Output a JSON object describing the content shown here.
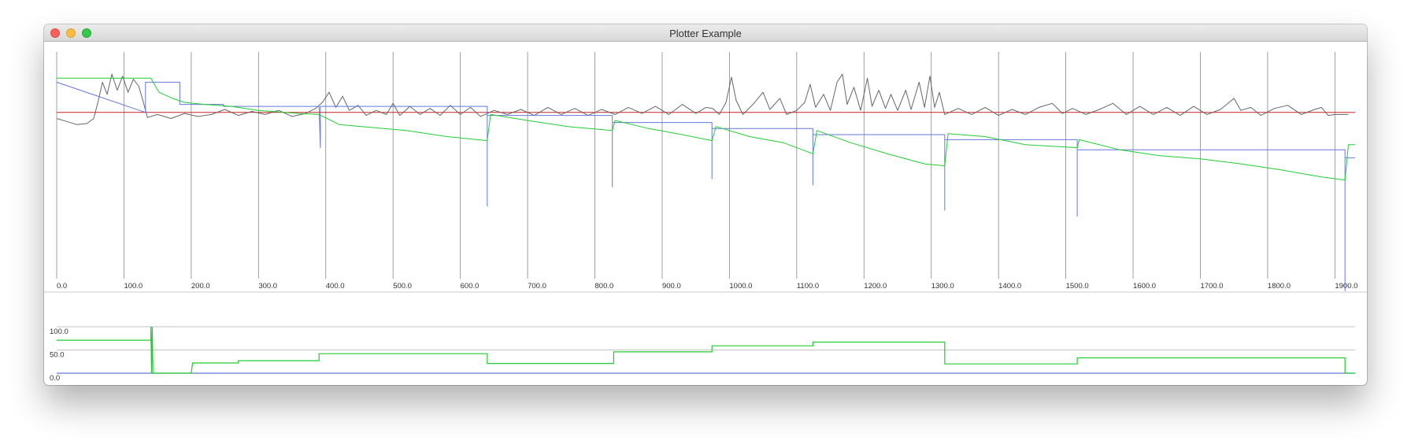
{
  "window": {
    "title": "Plotter Example"
  },
  "colors": {
    "noise": "#666666",
    "reference": "#cc2222",
    "blue": "#6677dd",
    "green": "#22cc33",
    "grid": "#888888"
  },
  "chart_data": [
    {
      "type": "line",
      "title": "",
      "xlim": [
        0,
        1930
      ],
      "ylim": [
        -1.65,
        0.6
      ],
      "x_ticks": [
        0,
        100,
        200,
        300,
        400,
        500,
        600,
        700,
        800,
        900,
        1000,
        1100,
        1200,
        1300,
        1400,
        1500,
        1600,
        1700,
        1800,
        1900
      ],
      "x_tick_labels": [
        "0.0",
        "100.0",
        "200.0",
        "300.0",
        "400.0",
        "500.0",
        "600.0",
        "700.0",
        "800.0",
        "900.0",
        "1000.0",
        "1100.0",
        "1200.0",
        "1300.0",
        "1400.0",
        "1500.0",
        "1600.0",
        "1700.0",
        "1800.0",
        "1900.0"
      ],
      "grid": "vertical",
      "series": [
        {
          "color": "#cc2222",
          "points": [
            [
              0,
              0
            ],
            [
              1930,
              0
            ]
          ]
        },
        {
          "color": "#666666",
          "points": [
            [
              0,
              -0.06
            ],
            [
              15,
              -0.09
            ],
            [
              30,
              -0.12
            ],
            [
              45,
              -0.11
            ],
            [
              55,
              -0.06
            ],
            [
              62,
              0.12
            ],
            [
              68,
              0.3
            ],
            [
              75,
              0.18
            ],
            [
              82,
              0.38
            ],
            [
              90,
              0.22
            ],
            [
              98,
              0.36
            ],
            [
              106,
              0.2
            ],
            [
              114,
              0.33
            ],
            [
              122,
              0.26
            ],
            [
              128,
              0.12
            ],
            [
              135,
              -0.05
            ],
            [
              150,
              -0.02
            ],
            [
              170,
              -0.06
            ],
            [
              190,
              -0.01
            ],
            [
              210,
              -0.04
            ],
            [
              230,
              -0.02
            ],
            [
              250,
              0.03
            ],
            [
              270,
              -0.03
            ],
            [
              290,
              0.01
            ],
            [
              310,
              -0.02
            ],
            [
              330,
              0.02
            ],
            [
              350,
              -0.04
            ],
            [
              370,
              -0.01
            ],
            [
              385,
              0.04
            ],
            [
              395,
              0.1
            ],
            [
              405,
              0.2
            ],
            [
              415,
              0.05
            ],
            [
              425,
              0.16
            ],
            [
              435,
              0.02
            ],
            [
              448,
              0.07
            ],
            [
              460,
              -0.03
            ],
            [
              475,
              0.02
            ],
            [
              490,
              -0.02
            ],
            [
              500,
              0.09
            ],
            [
              510,
              -0.03
            ],
            [
              525,
              0.06
            ],
            [
              540,
              -0.02
            ],
            [
              555,
              0.04
            ],
            [
              570,
              -0.03
            ],
            [
              585,
              0.07
            ],
            [
              600,
              -0.02
            ],
            [
              615,
              0.05
            ],
            [
              630,
              -0.04
            ],
            [
              650,
              0.02
            ],
            [
              670,
              -0.02
            ],
            [
              690,
              0.03
            ],
            [
              710,
              -0.03
            ],
            [
              730,
              0.05
            ],
            [
              750,
              -0.02
            ],
            [
              770,
              0.04
            ],
            [
              790,
              -0.03
            ],
            [
              810,
              0.03
            ],
            [
              830,
              -0.02
            ],
            [
              850,
              0.05
            ],
            [
              870,
              -0.01
            ],
            [
              890,
              0.06
            ],
            [
              910,
              -0.02
            ],
            [
              930,
              0.08
            ],
            [
              950,
              -0.01
            ],
            [
              965,
              0.05
            ],
            [
              975,
              0.04
            ],
            [
              985,
              -0.02
            ],
            [
              995,
              0.1
            ],
            [
              1003,
              0.35
            ],
            [
              1010,
              0.12
            ],
            [
              1020,
              -0.02
            ],
            [
              1035,
              0.08
            ],
            [
              1050,
              0.2
            ],
            [
              1060,
              0.03
            ],
            [
              1075,
              0.14
            ],
            [
              1085,
              -0.02
            ],
            [
              1100,
              0.02
            ],
            [
              1112,
              0.1
            ],
            [
              1120,
              0.28
            ],
            [
              1128,
              0.05
            ],
            [
              1140,
              0.18
            ],
            [
              1150,
              0.02
            ],
            [
              1160,
              0.3
            ],
            [
              1168,
              0.38
            ],
            [
              1175,
              0.08
            ],
            [
              1185,
              0.25
            ],
            [
              1195,
              0.02
            ],
            [
              1205,
              0.34
            ],
            [
              1212,
              0.06
            ],
            [
              1222,
              0.22
            ],
            [
              1232,
              0.04
            ],
            [
              1240,
              0.18
            ],
            [
              1250,
              0.02
            ],
            [
              1262,
              0.22
            ],
            [
              1270,
              0.03
            ],
            [
              1282,
              0.3
            ],
            [
              1290,
              0.05
            ],
            [
              1298,
              0.36
            ],
            [
              1305,
              0.05
            ],
            [
              1312,
              0.2
            ],
            [
              1320,
              -0.02
            ],
            [
              1340,
              0.04
            ],
            [
              1360,
              -0.02
            ],
            [
              1380,
              0.05
            ],
            [
              1400,
              -0.03
            ],
            [
              1420,
              0.03
            ],
            [
              1440,
              -0.02
            ],
            [
              1460,
              0.05
            ],
            [
              1480,
              0.09
            ],
            [
              1495,
              -0.01
            ],
            [
              1510,
              0.04
            ],
            [
              1530,
              -0.02
            ],
            [
              1550,
              0.03
            ],
            [
              1570,
              0.09
            ],
            [
              1590,
              -0.02
            ],
            [
              1610,
              0.06
            ],
            [
              1630,
              -0.02
            ],
            [
              1650,
              0.05
            ],
            [
              1670,
              -0.03
            ],
            [
              1690,
              0.06
            ],
            [
              1710,
              -0.02
            ],
            [
              1730,
              0.03
            ],
            [
              1750,
              0.14
            ],
            [
              1760,
              0.02
            ],
            [
              1775,
              0.05
            ],
            [
              1790,
              -0.03
            ],
            [
              1810,
              0.04
            ],
            [
              1830,
              0.07
            ],
            [
              1850,
              -0.02
            ],
            [
              1870,
              0.03
            ],
            [
              1880,
              0.05
            ],
            [
              1890,
              -0.03
            ],
            [
              1900,
              -0.02
            ],
            [
              1920,
              -0.02
            ]
          ]
        },
        {
          "color": "#6677dd",
          "points": [
            [
              0,
              0.3
            ],
            [
              132,
              0
            ],
            [
              132,
              0.3
            ],
            [
              183,
              0.3
            ],
            [
              183,
              0.08
            ],
            [
              248,
              0.08
            ],
            [
              248,
              0.06
            ],
            [
              390,
              0.06
            ],
            [
              390,
              0.06
            ],
            [
              392,
              -0.35
            ],
            [
              392,
              0.06
            ],
            [
              640,
              0.06
            ],
            [
              640,
              -0.93
            ],
            [
              640,
              -0.03
            ],
            [
              826,
              -0.03
            ],
            [
              826,
              -0.74
            ],
            [
              826,
              -0.1
            ],
            [
              974,
              -0.1
            ],
            [
              974,
              -0.66
            ],
            [
              974,
              -0.16
            ],
            [
              1124,
              -0.16
            ],
            [
              1124,
              -0.72
            ],
            [
              1124,
              -0.22
            ],
            [
              1320,
              -0.22
            ],
            [
              1320,
              -0.97
            ],
            [
              1320,
              -0.27
            ],
            [
              1517,
              -0.27
            ],
            [
              1517,
              -1.03
            ],
            [
              1517,
              -0.37
            ],
            [
              1915,
              -0.37
            ],
            [
              1915,
              -1.77
            ],
            [
              1915,
              -0.45
            ],
            [
              1930,
              -0.45
            ]
          ]
        },
        {
          "color": "#22cc33",
          "points": [
            [
              0,
              0.34
            ],
            [
              140,
              0.34
            ],
            [
              152,
              0.2
            ],
            [
              172,
              0.14
            ],
            [
              190,
              0.1
            ],
            [
              220,
              0.08
            ],
            [
              260,
              0.06
            ],
            [
              300,
              0.02
            ],
            [
              360,
              -0.01
            ],
            [
              390,
              -0.02
            ],
            [
              420,
              -0.12
            ],
            [
              470,
              -0.15
            ],
            [
              520,
              -0.18
            ],
            [
              580,
              -0.24
            ],
            [
              640,
              -0.28
            ],
            [
              645,
              -0.02
            ],
            [
              700,
              -0.08
            ],
            [
              760,
              -0.14
            ],
            [
              826,
              -0.18
            ],
            [
              830,
              -0.08
            ],
            [
              880,
              -0.16
            ],
            [
              930,
              -0.22
            ],
            [
              974,
              -0.28
            ],
            [
              980,
              -0.14
            ],
            [
              1030,
              -0.24
            ],
            [
              1080,
              -0.3
            ],
            [
              1124,
              -0.41
            ],
            [
              1130,
              -0.18
            ],
            [
              1180,
              -0.3
            ],
            [
              1240,
              -0.42
            ],
            [
              1290,
              -0.51
            ],
            [
              1320,
              -0.53
            ],
            [
              1325,
              -0.21
            ],
            [
              1380,
              -0.24
            ],
            [
              1440,
              -0.32
            ],
            [
              1517,
              -0.35
            ],
            [
              1520,
              -0.27
            ],
            [
              1580,
              -0.37
            ],
            [
              1640,
              -0.43
            ],
            [
              1700,
              -0.46
            ],
            [
              1760,
              -0.51
            ],
            [
              1820,
              -0.57
            ],
            [
              1880,
              -0.64
            ],
            [
              1915,
              -0.67
            ],
            [
              1920,
              -0.32
            ],
            [
              1930,
              -0.32
            ]
          ]
        }
      ]
    },
    {
      "type": "line",
      "title": "",
      "xlim": [
        0,
        1930
      ],
      "ylim": [
        0,
        100
      ],
      "y_ticks": [
        0,
        50,
        100
      ],
      "y_tick_labels": [
        "0.0",
        "50.0",
        "100.0"
      ],
      "grid": "horizontal",
      "series": [
        {
          "color": "#6677dd",
          "points": [
            [
              0,
              0
            ],
            [
              1930,
              0
            ]
          ]
        },
        {
          "color": "#22cc33",
          "points": [
            [
              0,
              71
            ],
            [
              140,
              71
            ],
            [
              140,
              100
            ],
            [
              141,
              0
            ],
            [
              142,
              100
            ],
            [
              143,
              0
            ],
            [
              145,
              0
            ],
            [
              200,
              0
            ],
            [
              202,
              22
            ],
            [
              270,
              22
            ],
            [
              270,
              27
            ],
            [
              390,
              27
            ],
            [
              390,
              42
            ],
            [
              640,
              42
            ],
            [
              640,
              21
            ],
            [
              828,
              21
            ],
            [
              828,
              46
            ],
            [
              974,
              46
            ],
            [
              974,
              59
            ],
            [
              1124,
              59
            ],
            [
              1124,
              67
            ],
            [
              1320,
              67
            ],
            [
              1320,
              20
            ],
            [
              1517,
              20
            ],
            [
              1517,
              33
            ],
            [
              1915,
              33
            ],
            [
              1915,
              0
            ],
            [
              1930,
              0
            ]
          ]
        }
      ]
    }
  ]
}
